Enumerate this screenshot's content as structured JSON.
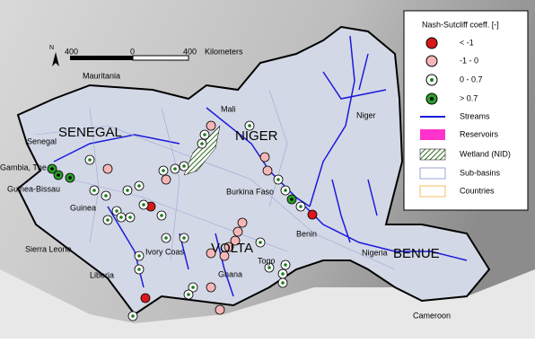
{
  "legend": {
    "title": "Nash-Sutcliff coeff. [-]",
    "classes": [
      "< -1",
      "-1 - 0",
      "0 - 0.7",
      "> 0.7"
    ],
    "layers": [
      "Streams",
      "Reservoirs",
      "Wetland (NID)",
      "Sub-basins",
      "Countries"
    ]
  },
  "scale": {
    "left": "400",
    "middle": "0",
    "right": "400",
    "unit": "Kilometers"
  },
  "north": "N",
  "basins": [
    "SENEGAL",
    "NIGER",
    "VOLTA",
    "BENUE"
  ],
  "countries": [
    "Mauritania",
    "Mali",
    "Niger",
    "Senegal",
    "Gambia, The",
    "Guinea-Bissau",
    "Guinea",
    "Sierra Leone",
    "Liberia",
    "Ivory Coas",
    "Burkina Faso",
    "Ghana",
    "Togo",
    "Benin",
    "Nigeria",
    "Cameroon"
  ]
}
